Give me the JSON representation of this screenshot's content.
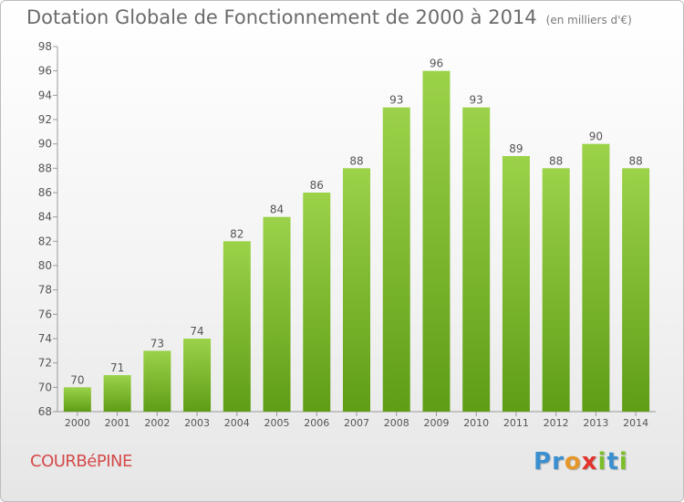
{
  "header": {
    "title": "Dotation Globale de Fonctionnement de 2000 à 2014",
    "subtitle": "(en milliers d'€)"
  },
  "footer": {
    "commune": "COURBéPINE",
    "logo": "Proxiti"
  },
  "colors": {
    "bar_light": "#9bd249",
    "bar_dark": "#5f9d16",
    "commune": "#d44a4a",
    "logo_letters": [
      "#3a8fd0",
      "#3a8fd0",
      "#e6972a",
      "#e0342c",
      "#7cbf2a",
      "#3a8fd0",
      "#7cbf2a"
    ]
  },
  "chart_data": {
    "type": "bar",
    "title": "Dotation Globale de Fonctionnement de 2000 à 2014",
    "subtitle": "(en milliers d'€)",
    "categories": [
      "2000",
      "2001",
      "2002",
      "2003",
      "2004",
      "2005",
      "2006",
      "2007",
      "2008",
      "2009",
      "2010",
      "2011",
      "2012",
      "2013",
      "2014"
    ],
    "values": [
      70,
      71,
      73,
      74,
      82,
      84,
      86,
      88,
      93,
      96,
      93,
      89,
      88,
      90,
      88
    ],
    "ylim": [
      68,
      98
    ],
    "yticks": [
      68,
      70,
      72,
      74,
      76,
      78,
      80,
      82,
      84,
      86,
      88,
      90,
      92,
      94,
      96,
      98
    ],
    "grid": false,
    "legend": "none",
    "data_labels": true
  }
}
